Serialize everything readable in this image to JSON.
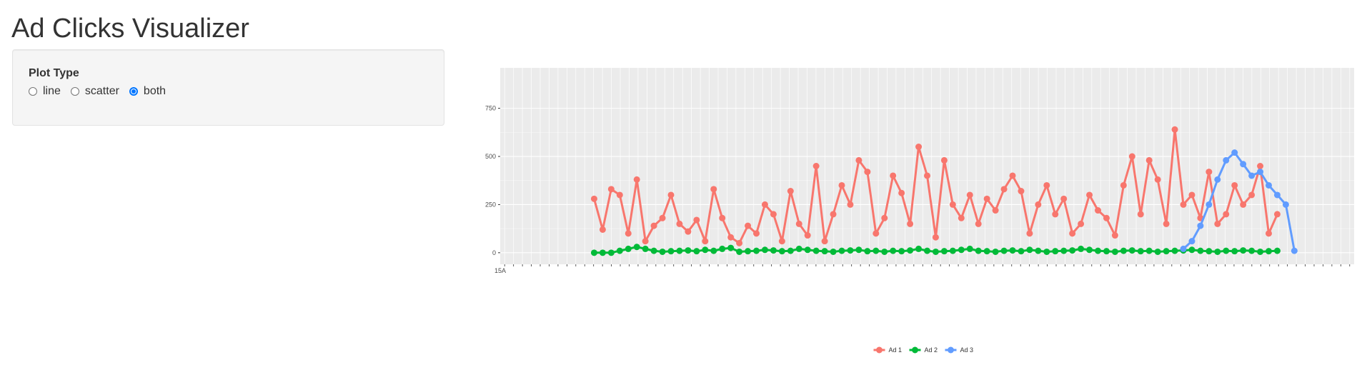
{
  "app": {
    "title": "Ad Clicks Visualizer"
  },
  "controls": {
    "plot_type_label": "Plot Type",
    "options": [
      {
        "label": "line",
        "checked": false
      },
      {
        "label": "scatter",
        "checked": false
      },
      {
        "label": "both",
        "checked": true
      }
    ]
  },
  "chart_data": {
    "type": "line",
    "title": "",
    "xlabel": "",
    "ylabel": "",
    "ylim": [
      -60,
      960
    ],
    "y_ticks": [
      0,
      250,
      500,
      750
    ],
    "y_tick_labels": [
      "0",
      "250",
      "500",
      "750"
    ],
    "markers": true,
    "grid": true,
    "panel_background": "#ebebeb",
    "legend_position": "bottom",
    "x_tick_count": 96,
    "x_start_label": "15A",
    "x": [
      11,
      12,
      13,
      14,
      15,
      16,
      17,
      18,
      19,
      20,
      21,
      22,
      23,
      24,
      25,
      26,
      27,
      28,
      29,
      30,
      31,
      32,
      33,
      34,
      35,
      36,
      37,
      38,
      39,
      40,
      41,
      42,
      43,
      44,
      45,
      46,
      47,
      48,
      49,
      50,
      51,
      52,
      53,
      54,
      55,
      56,
      57,
      58,
      59,
      60,
      61,
      62,
      63,
      64,
      65,
      66,
      67,
      68,
      69,
      70,
      71,
      72,
      73,
      74,
      75,
      76,
      77,
      78,
      79,
      80,
      81,
      82,
      83,
      84,
      85,
      86,
      87,
      88,
      89,
      90,
      91
    ],
    "series": [
      {
        "name": "Ad 1",
        "color": "#F8766D",
        "values": [
          280,
          120,
          330,
          300,
          100,
          380,
          60,
          140,
          180,
          300,
          150,
          110,
          170,
          60,
          330,
          180,
          80,
          50,
          140,
          100,
          250,
          200,
          60,
          320,
          150,
          90,
          450,
          60,
          200,
          350,
          250,
          480,
          420,
          100,
          180,
          400,
          310,
          150,
          550,
          400,
          80,
          480,
          250,
          180,
          300,
          150,
          280,
          220,
          330,
          400,
          320,
          100,
          250,
          350,
          200,
          280,
          100,
          150,
          300,
          220,
          180,
          90,
          350,
          500,
          200,
          480,
          380,
          150,
          640,
          250,
          300,
          180,
          420,
          150,
          200,
          350,
          250,
          300,
          450,
          100,
          200
        ]
      },
      {
        "name": "Ad 2",
        "color": "#00BA38",
        "values": [
          0,
          0,
          0,
          10,
          20,
          30,
          20,
          10,
          5,
          8,
          10,
          12,
          8,
          15,
          10,
          20,
          25,
          5,
          8,
          10,
          15,
          12,
          8,
          10,
          20,
          15,
          10,
          8,
          5,
          10,
          12,
          15,
          8,
          10,
          5,
          10,
          8,
          12,
          20,
          10,
          5,
          8,
          10,
          15,
          20,
          10,
          8,
          5,
          10,
          12,
          8,
          15,
          10,
          5,
          8,
          10,
          12,
          20,
          15,
          10,
          8,
          5,
          10,
          12,
          8,
          10,
          5,
          8,
          10,
          12,
          15,
          10,
          8,
          5,
          10,
          8,
          12,
          10,
          5,
          8,
          10
        ]
      },
      {
        "name": "Ad 3",
        "color": "#619CFF",
        "x": [
          80,
          81,
          82,
          83,
          84,
          85,
          86,
          87,
          88,
          89,
          90,
          91,
          92,
          93
        ],
        "values": [
          20,
          60,
          140,
          250,
          380,
          480,
          520,
          460,
          400,
          420,
          350,
          300,
          250,
          10
        ]
      }
    ]
  }
}
